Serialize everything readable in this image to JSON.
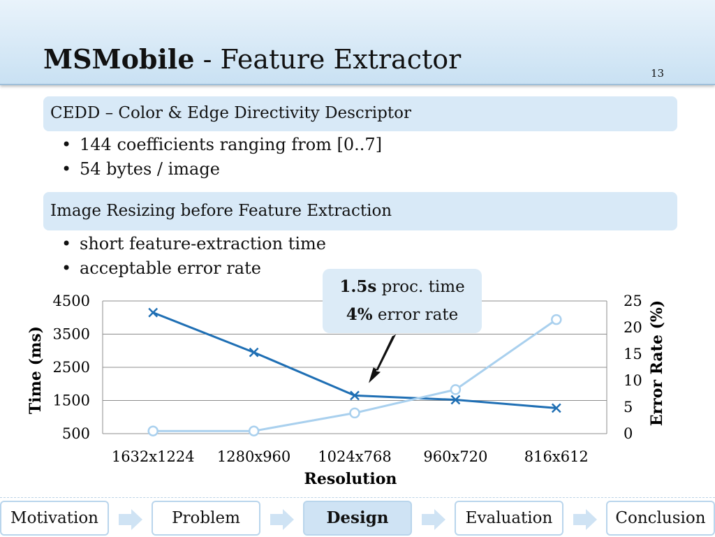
{
  "slide": {
    "title_main": "MSMobile",
    "title_sep": " - ",
    "title_sub": "Feature Extractor",
    "number": "13"
  },
  "sections": [
    {
      "heading": "CEDD – Color & Edge Directivity Descriptor",
      "bullets": [
        "144 coefficients ranging from [0..7]",
        "54 bytes / image"
      ]
    },
    {
      "heading": "Image Resizing before Feature Extraction",
      "bullets": [
        "short feature-extraction time",
        "acceptable error rate"
      ]
    }
  ],
  "callout": {
    "line1_value": "1.5s",
    "line1_text": " proc. time",
    "line2_value": "4%",
    "line2_text": " error rate"
  },
  "chart_data": {
    "type": "line",
    "categories": [
      "1632x1224",
      "1280x960",
      "1024x768",
      "960x720",
      "816x612"
    ],
    "xlabel": "Resolution",
    "ylabel_left": "Time (ms)",
    "ylabel_right": "Error Rate (%)",
    "y_left_range": [
      500,
      4500
    ],
    "y_left_ticks": [
      "500",
      "1500",
      "2500",
      "3500",
      "4500"
    ],
    "y_right_range": [
      0,
      25
    ],
    "y_right_ticks": [
      "0",
      "5",
      "10",
      "15",
      "20",
      "25"
    ],
    "grid": true,
    "series": [
      {
        "axis": "left",
        "marker": "x",
        "color": "#1f6fb4",
        "values": [
          4150,
          2950,
          1650,
          1520,
          1270
        ]
      },
      {
        "axis": "right",
        "marker": "circle",
        "color": "#a9d0ee",
        "values": [
          0.5,
          0.5,
          3.9,
          8.3,
          21.5
        ]
      }
    ]
  },
  "nav": {
    "items": [
      {
        "label": "Motivation",
        "active": false
      },
      {
        "label": "Problem",
        "active": false
      },
      {
        "label": "Design",
        "active": true
      },
      {
        "label": "Evaluation",
        "active": false
      },
      {
        "label": "Conclusion",
        "active": false
      }
    ]
  }
}
